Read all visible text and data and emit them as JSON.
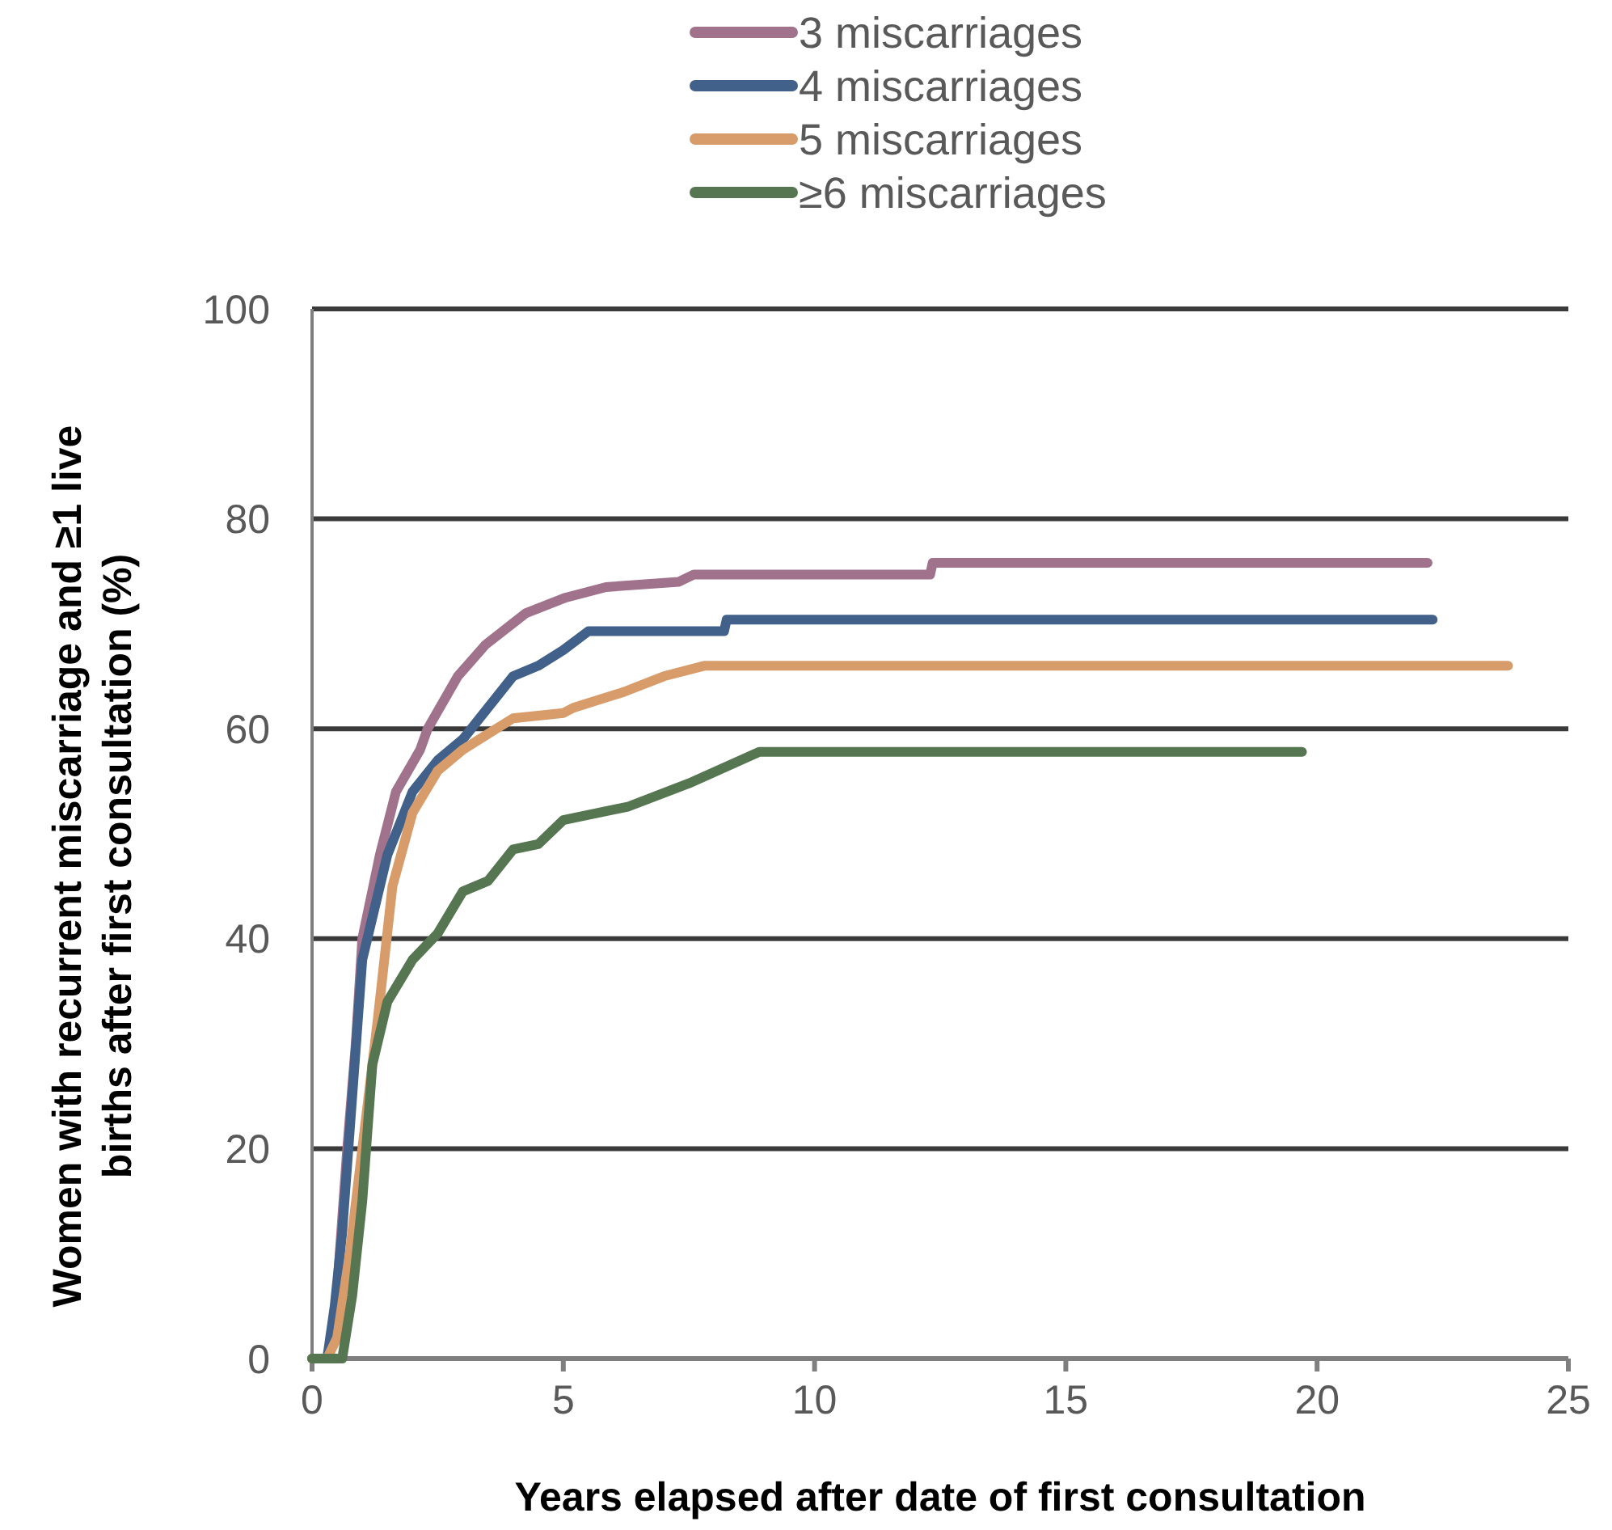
{
  "chart_data": {
    "type": "line",
    "xlabel": "Years elapsed after date of first consultation",
    "ylabel": "Women with recurrent miscarriage and ≥1 live births after first consultation (%)",
    "xlim": [
      0,
      25
    ],
    "ylim": [
      0,
      100
    ],
    "xticks": [
      0,
      5,
      10,
      15,
      20,
      25
    ],
    "yticks": [
      0,
      20,
      40,
      60,
      80,
      100
    ],
    "grid": "y",
    "legend": "top",
    "marker": "none",
    "line_style": "solid",
    "series": [
      {
        "name": "3 miscarriages",
        "color": "#a0728c",
        "x": [
          0,
          0.3,
          0.45,
          0.55,
          0.7,
          0.87,
          1,
          1.35,
          1.67,
          2.15,
          2.3,
          2.9,
          3.45,
          4.25,
          5.05,
          5.85,
          7.3,
          7.6,
          12.3,
          12.35,
          22.2
        ],
        "values": [
          0,
          0,
          3,
          10,
          20,
          30,
          40,
          48,
          54,
          58,
          60,
          65,
          68,
          71,
          72.5,
          73.5,
          74,
          74.7,
          74.7,
          75.8,
          75.8
        ]
      },
      {
        "name": "4 miscarriages",
        "color": "#41618a",
        "x": [
          0,
          0.3,
          0.45,
          0.6,
          0.8,
          1,
          1.5,
          2,
          2.5,
          3,
          3.5,
          4,
          4.5,
          5,
          5.5,
          8.2,
          8.25,
          22.3
        ],
        "values": [
          0,
          0,
          5,
          12,
          25,
          38,
          48,
          54,
          57,
          59,
          62,
          65,
          66,
          67.5,
          69.3,
          69.3,
          70.4,
          70.4
        ]
      },
      {
        "name": "5 miscarriages",
        "color": "#d89c6a",
        "x": [
          0,
          0.3,
          0.5,
          0.75,
          1,
          1.3,
          1.6,
          2,
          2.5,
          3,
          3.5,
          4,
          5,
          5.2,
          6.2,
          7,
          7.8,
          23.8
        ],
        "values": [
          0,
          0,
          2,
          10,
          20,
          32,
          45,
          52,
          56,
          58,
          59.5,
          61,
          61.5,
          62,
          63.5,
          65,
          66,
          66
        ]
      },
      {
        "name": "≥6 miscarriages",
        "color": "#557650",
        "x": [
          0,
          0.6,
          0.8,
          1,
          1.2,
          1.5,
          2,
          2.5,
          3,
          3.5,
          4,
          4.5,
          5,
          6.3,
          7.5,
          8.9,
          19.7
        ],
        "values": [
          0,
          0,
          6,
          15,
          28,
          34,
          38,
          40.5,
          44.5,
          45.5,
          48.5,
          49,
          51.3,
          52.6,
          54.8,
          57.8,
          57.8
        ]
      }
    ]
  }
}
